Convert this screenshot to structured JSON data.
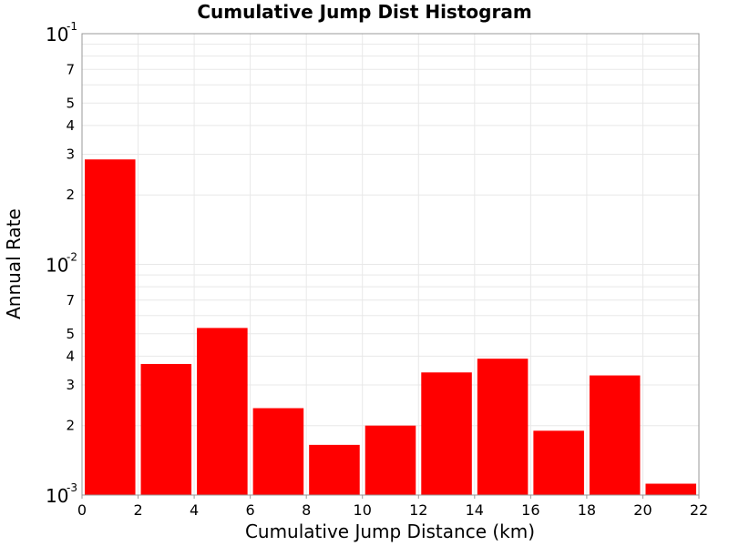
{
  "chart_data": {
    "type": "bar",
    "title": "Cumulative Jump Dist Histogram",
    "xlabel": "Cumulative Jump Distance (km)",
    "ylabel": "Annual Rate",
    "y_scale": "log",
    "xlim": [
      0,
      22
    ],
    "ylim": [
      0.001,
      0.1
    ],
    "x_ticks": [
      "0",
      "2",
      "4",
      "6",
      "8",
      "10",
      "12",
      "14",
      "16",
      "18",
      "20",
      "22"
    ],
    "y_major_ticks": [
      {
        "value": 0.1,
        "base": "10",
        "exp": "-1"
      },
      {
        "value": 0.01,
        "base": "10",
        "exp": "-2"
      },
      {
        "value": 0.001,
        "base": "10",
        "exp": "-3"
      }
    ],
    "y_minor_ticks": [
      {
        "value": 0.07,
        "label": "7"
      },
      {
        "value": 0.05,
        "label": "5"
      },
      {
        "value": 0.04,
        "label": "4"
      },
      {
        "value": 0.03,
        "label": "3"
      },
      {
        "value": 0.02,
        "label": "2"
      },
      {
        "value": 0.007,
        "label": "7"
      },
      {
        "value": 0.005,
        "label": "5"
      },
      {
        "value": 0.004,
        "label": "4"
      },
      {
        "value": 0.003,
        "label": "3"
      },
      {
        "value": 0.002,
        "label": "2"
      }
    ],
    "bins": [
      {
        "x_start": 0,
        "x_end": 2,
        "value": 0.0285
      },
      {
        "x_start": 2,
        "x_end": 4,
        "value": 0.0037
      },
      {
        "x_start": 4,
        "x_end": 6,
        "value": 0.0053
      },
      {
        "x_start": 6,
        "x_end": 8,
        "value": 0.00238
      },
      {
        "x_start": 8,
        "x_end": 10,
        "value": 0.00165
      },
      {
        "x_start": 10,
        "x_end": 12,
        "value": 0.002
      },
      {
        "x_start": 12,
        "x_end": 14,
        "value": 0.0034
      },
      {
        "x_start": 14,
        "x_end": 16,
        "value": 0.0039
      },
      {
        "x_start": 16,
        "x_end": 18,
        "value": 0.0019
      },
      {
        "x_start": 18,
        "x_end": 20,
        "value": 0.0033
      },
      {
        "x_start": 20,
        "x_end": 22,
        "value": 0.00112
      }
    ],
    "bar_color": "#ff0000",
    "grid": true,
    "legend": "none"
  }
}
